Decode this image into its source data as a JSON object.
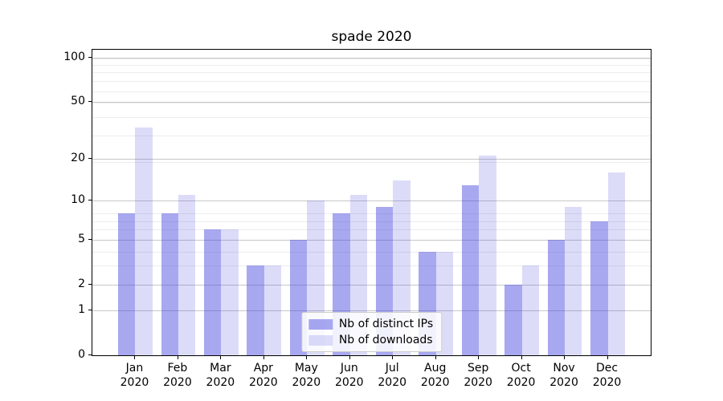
{
  "chart_data": {
    "type": "bar",
    "title": "spade 2020",
    "categories": [
      "Jan 2020",
      "Feb 2020",
      "Mar 2020",
      "Apr 2020",
      "May 2020",
      "Jun 2020",
      "Jul 2020",
      "Aug 2020",
      "Sep 2020",
      "Oct 2020",
      "Nov 2020",
      "Dec 2020"
    ],
    "series": [
      {
        "name": "Nb of distinct IPs",
        "values": [
          8,
          8,
          6,
          3,
          5,
          8,
          9,
          4,
          13,
          2,
          5,
          7
        ],
        "color": "#a8a8f0",
        "fill": "rgba(62,62,222,0.45)"
      },
      {
        "name": "Nb of downloads",
        "values": [
          33,
          11,
          6,
          3,
          10,
          11,
          14,
          4,
          21,
          3,
          9,
          16
        ],
        "color": "#dcdcf9",
        "fill": "rgba(80,80,225,0.2)"
      }
    ],
    "y_ticks": [
      100,
      50,
      20,
      10,
      5,
      2,
      1,
      0
    ],
    "y_scale": "log1p",
    "ylim": [
      0,
      113
    ],
    "xlabel": "",
    "ylabel": "",
    "grid": true,
    "legend_position": "lower center",
    "colors": {
      "major_grid": "#c6c6c6",
      "minor_grid": "#ececec",
      "axis": "#000000",
      "background": "#ffffff"
    }
  }
}
